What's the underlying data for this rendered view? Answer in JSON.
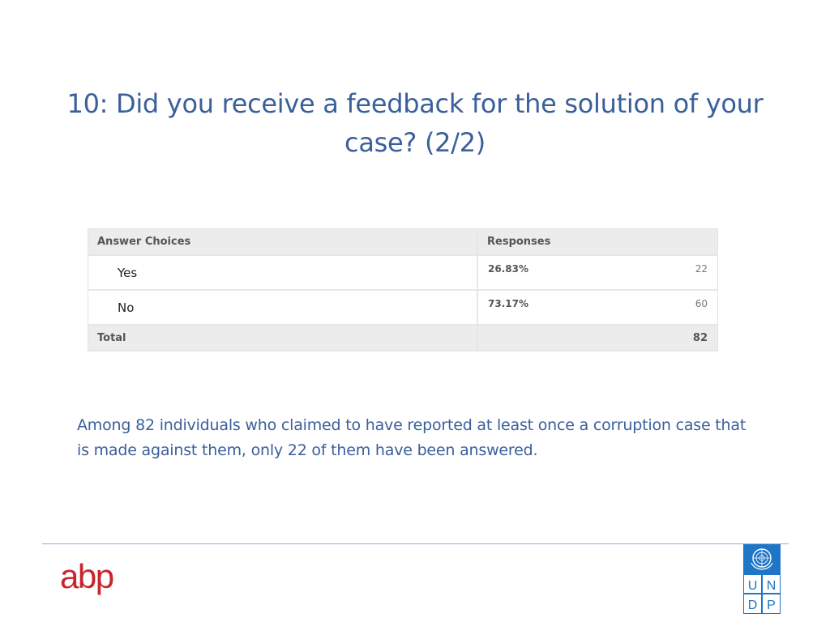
{
  "slide": {
    "title": "10: Did you receive a feedback for the solution of your case? (2/2)"
  },
  "table": {
    "headers": {
      "choice": "Answer Choices",
      "responses": "Responses"
    },
    "rows": [
      {
        "choice": "Yes",
        "percent": "26.83%",
        "count": "22"
      },
      {
        "choice": "No",
        "percent": "73.17%",
        "count": "60"
      }
    ],
    "total": {
      "label": "Total",
      "value": "82"
    }
  },
  "summary": "Among 82 individuals who claimed to have reported at least once a corruption case that is made against them, only 22 of them have been answered.",
  "footer": {
    "left_logo_text": "abp",
    "right_logo_letters": [
      "U",
      "N",
      "D",
      "P"
    ],
    "colors": {
      "abp_red": "#c8252d",
      "undp_blue": "#1f75c6",
      "accent_text": "#3a5f9a"
    }
  }
}
